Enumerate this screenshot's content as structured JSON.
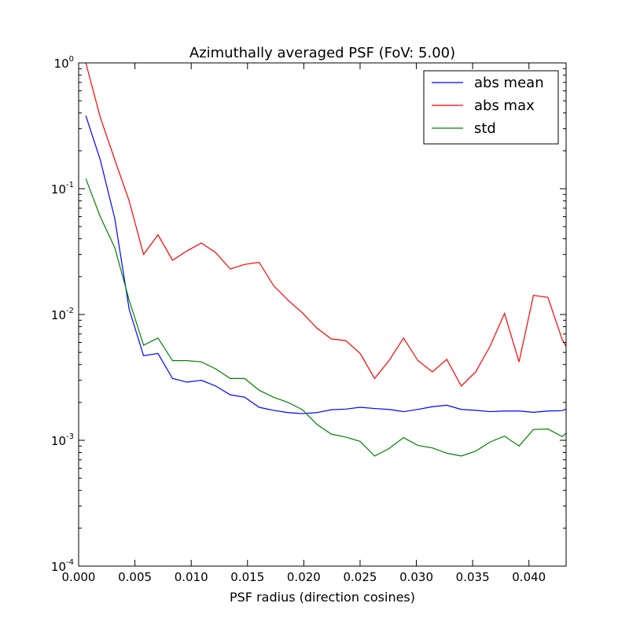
{
  "chart_data": {
    "type": "line",
    "title": "Azimuthally averaged PSF (FoV: 5.00)",
    "xlabel": "PSF radius (direction cosines)",
    "ylabel": "",
    "xlim": [
      0.0,
      0.0433
    ],
    "ylim": [
      0.0001,
      1
    ],
    "yscale": "log",
    "grid": false,
    "legend_position": "top-right",
    "x_ticks": [
      {
        "value": 0.0,
        "label": "0.000"
      },
      {
        "value": 0.005,
        "label": "0.005"
      },
      {
        "value": 0.01,
        "label": "0.010"
      },
      {
        "value": 0.015,
        "label": "0.015"
      },
      {
        "value": 0.02,
        "label": "0.020"
      },
      {
        "value": 0.025,
        "label": "0.025"
      },
      {
        "value": 0.03,
        "label": "0.030"
      },
      {
        "value": 0.035,
        "label": "0.035"
      },
      {
        "value": 0.04,
        "label": "0.040"
      }
    ],
    "y_ticks": [
      {
        "value": 1,
        "base": "10",
        "exp": "0"
      },
      {
        "value": 0.1,
        "base": "10",
        "exp": "-1"
      },
      {
        "value": 0.01,
        "base": "10",
        "exp": "-2"
      },
      {
        "value": 0.001,
        "base": "10",
        "exp": "-3"
      },
      {
        "value": 0.0001,
        "base": "10",
        "exp": "-4"
      }
    ],
    "x": [
      0.00064,
      0.00192,
      0.00321,
      0.00449,
      0.00577,
      0.00705,
      0.00834,
      0.00962,
      0.0109,
      0.01218,
      0.01347,
      0.01475,
      0.01603,
      0.01731,
      0.0186,
      0.01988,
      0.02116,
      0.02244,
      0.02373,
      0.02501,
      0.02629,
      0.02757,
      0.02886,
      0.03014,
      0.03142,
      0.0327,
      0.03399,
      0.03527,
      0.03655,
      0.03783,
      0.03912,
      0.0404,
      0.04168,
      0.04296,
      0.0433
    ],
    "series": [
      {
        "name": "abs mean",
        "color": "#0000ff",
        "values": [
          0.38,
          0.17,
          0.058,
          0.011,
          0.0047,
          0.0049,
          0.0031,
          0.0029,
          0.003,
          0.0027,
          0.0023,
          0.0022,
          0.00183,
          0.00173,
          0.00166,
          0.00163,
          0.00166,
          0.00175,
          0.00177,
          0.00183,
          0.00179,
          0.00176,
          0.00169,
          0.00176,
          0.00185,
          0.0019,
          0.00176,
          0.00173,
          0.00169,
          0.00171,
          0.00171,
          0.00167,
          0.00171,
          0.00172,
          0.00177
        ]
      },
      {
        "name": "abs max",
        "color": "#ff0000",
        "values": [
          1.0,
          0.37,
          0.17,
          0.08,
          0.03,
          0.043,
          0.027,
          0.032,
          0.037,
          0.031,
          0.023,
          0.025,
          0.026,
          0.017,
          0.013,
          0.0103,
          0.0078,
          0.0064,
          0.0062,
          0.0049,
          0.0031,
          0.0043,
          0.0065,
          0.0043,
          0.0035,
          0.0044,
          0.0027,
          0.0035,
          0.0056,
          0.0102,
          0.0042,
          0.0142,
          0.0137,
          0.0063,
          0.0056
        ]
      },
      {
        "name": "std",
        "color": "#008000",
        "values": [
          0.12,
          0.06,
          0.034,
          0.013,
          0.0057,
          0.0065,
          0.0043,
          0.0043,
          0.0042,
          0.0037,
          0.0031,
          0.0031,
          0.0025,
          0.0022,
          0.002,
          0.00175,
          0.00134,
          0.00112,
          0.00106,
          0.00098,
          0.00075,
          0.00086,
          0.00105,
          0.00091,
          0.00087,
          0.00079,
          0.00075,
          0.00082,
          0.00097,
          0.00108,
          0.0009,
          0.00122,
          0.00123,
          0.00107,
          0.00114
        ]
      }
    ]
  }
}
